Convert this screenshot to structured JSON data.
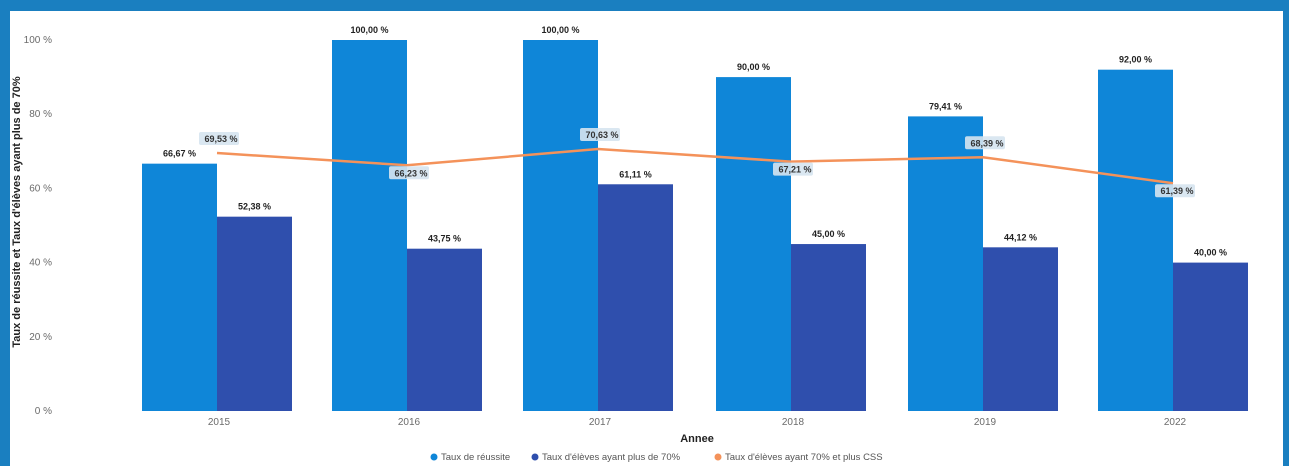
{
  "colors": {
    "frame": "#1a7fc0",
    "series_1": "#0f86d8",
    "series_2": "#2f4fad",
    "series_3": "#f4925a",
    "label_box": "#d6e4f0"
  },
  "chart_data": {
    "type": "bar",
    "categories": [
      "2015",
      "2016",
      "2017",
      "2018",
      "2019",
      "2022"
    ],
    "series": [
      {
        "name": "Taux de réussite",
        "type": "bar",
        "values": [
          66.67,
          100.0,
          100.0,
          90.0,
          79.41,
          92.0
        ],
        "labels": [
          "66,67 %",
          "100,00 %",
          "100,00 %",
          "90,00 %",
          "79,41 %",
          "92,00 %"
        ]
      },
      {
        "name": "Taux d'élèves ayant plus de 70%",
        "type": "bar",
        "values": [
          52.38,
          43.75,
          61.11,
          45.0,
          44.12,
          40.0
        ],
        "labels": [
          "52,38 %",
          "43,75 %",
          "61,11 %",
          "45,00 %",
          "44,12 %",
          "40,00 %"
        ]
      },
      {
        "name": "Taux d'élèves ayant 70% et plus CSS",
        "type": "line",
        "values": [
          69.53,
          66.23,
          70.63,
          67.21,
          68.39,
          61.39
        ],
        "labels": [
          "69,53 %",
          "66,23 %",
          "70,63 %",
          "67,21 %",
          "68,39 %",
          "61,39 %"
        ]
      }
    ],
    "xlabel": "Annee",
    "ylabel": "Taux de réussite et Taux d'élèves ayant plus de 70%",
    "ylim": [
      0,
      100
    ],
    "yticks": [
      "0 %",
      "20 %",
      "40 %",
      "60 %",
      "80 %",
      "100 %"
    ],
    "legend_position": "bottom-center",
    "grid": false
  }
}
